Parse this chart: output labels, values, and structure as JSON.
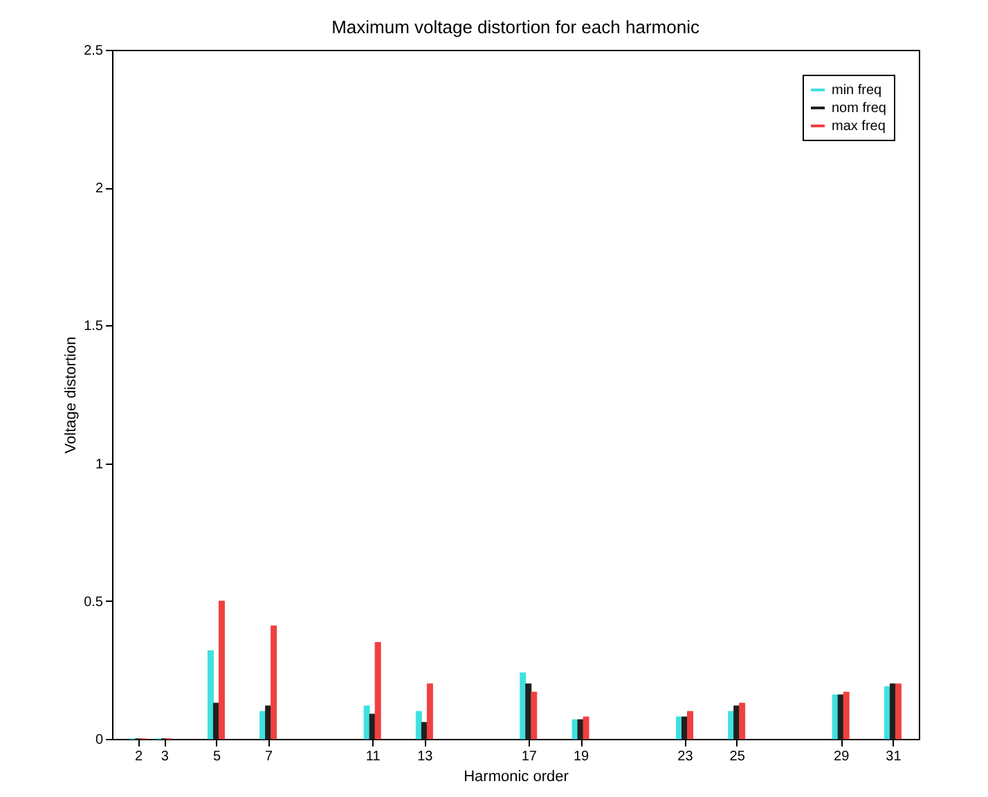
{
  "chart_data": {
    "type": "bar",
    "title": "Maximum voltage distortion for each harmonic",
    "xlabel": "Harmonic order",
    "ylabel": "Voltage distortion",
    "x": [
      2,
      3,
      5,
      7,
      11,
      13,
      17,
      19,
      23,
      25,
      29,
      31
    ],
    "series": [
      {
        "name": "min freq",
        "color": "#40e0e0",
        "values": [
          0,
          0,
          0.32,
          0.1,
          0.12,
          0.1,
          0.24,
          0.07,
          0.08,
          0.1,
          0.16,
          0.19
        ]
      },
      {
        "name": "nom freq",
        "color": "#202020",
        "values": [
          0,
          0,
          0.13,
          0.12,
          0.09,
          0.06,
          0.2,
          0.07,
          0.08,
          0.12,
          0.16,
          0.2
        ]
      },
      {
        "name": "max freq",
        "color": "#f04040",
        "values": [
          0,
          0,
          0.5,
          0.41,
          0.35,
          0.2,
          0.17,
          0.08,
          0.1,
          0.13,
          0.17,
          0.2
        ]
      }
    ],
    "xlim": [
      1,
      32
    ],
    "xticks": [
      2,
      3,
      5,
      7,
      11,
      13,
      17,
      19,
      23,
      25,
      29,
      31
    ],
    "ylim": [
      0,
      2.5
    ],
    "yticks": [
      0,
      0.5,
      1,
      1.5,
      2,
      2.5
    ],
    "grid": false,
    "legend": "top right"
  }
}
